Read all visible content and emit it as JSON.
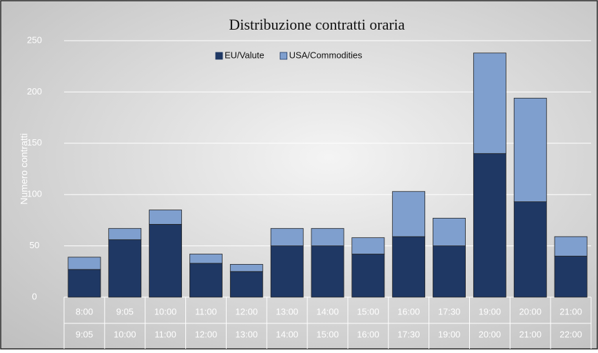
{
  "chart_data": {
    "type": "stacked_bar",
    "title": "Distribuzione contratti oraria",
    "y_axis_label": "Numero contratti",
    "categories": [
      [
        "8:00",
        "9:05"
      ],
      [
        "9:05",
        "10:00"
      ],
      [
        "10:00",
        "11:00"
      ],
      [
        "11:00",
        "12:00"
      ],
      [
        "12:00",
        "13:00"
      ],
      [
        "13:00",
        "14:00"
      ],
      [
        "14:00",
        "15:00"
      ],
      [
        "15:00",
        "16:00"
      ],
      [
        "16:00",
        "17:30"
      ],
      [
        "17:30",
        "19:00"
      ],
      [
        "19:00",
        "20:00"
      ],
      [
        "20:00",
        "21:00"
      ],
      [
        "21:00",
        "22:00"
      ]
    ],
    "series": [
      {
        "name": "EU/Valute",
        "color": "#1f3864",
        "values": [
          27,
          56,
          71,
          33,
          25,
          50,
          50,
          42,
          59,
          50,
          140,
          93,
          40
        ]
      },
      {
        "name": "USA/Commodities",
        "color": "#7f9fce",
        "values": [
          12,
          11,
          14,
          9,
          7,
          17,
          17,
          16,
          44,
          27,
          98,
          101,
          19
        ]
      }
    ],
    "ylim": [
      0,
      250
    ],
    "yticks": [
      0,
      50,
      100,
      150,
      200,
      250
    ],
    "grid": true,
    "legend": "top"
  }
}
